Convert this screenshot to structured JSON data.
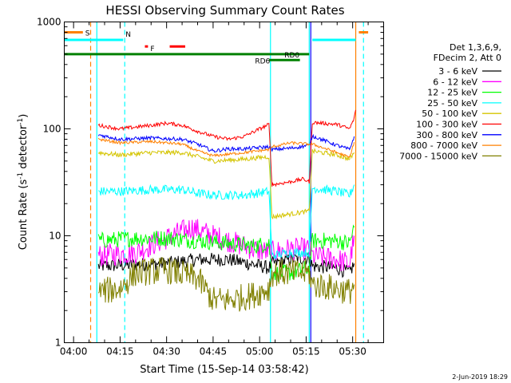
{
  "chart_data": {
    "type": "line",
    "title": "HESSI Observing Summary Count Rates",
    "xlabel": "Start Time (15-Sep-14 03:58:42)",
    "ylabel_main": "Count Rate (s",
    "ylabel_sup1": "-1",
    "ylabel_mid": " detector",
    "ylabel_sup2": "-1",
    "ylabel_end": ")",
    "yscale": "log",
    "ylim": [
      1,
      1000
    ],
    "xlim_minutes": [
      -3,
      100
    ],
    "xticks": [
      "04:00",
      "04:15",
      "04:30",
      "04:45",
      "05:00",
      "05:15",
      "05:30"
    ],
    "xtick_minutes": [
      0,
      15,
      30,
      45,
      60,
      75,
      90
    ],
    "yticks": [
      "1",
      "10",
      "100",
      "1000"
    ],
    "ytick_values": [
      1,
      10,
      100,
      1000
    ],
    "footer_date": "2-Jun-2019 18:29",
    "legend": {
      "header": [
        "Det 1,3,6,9,",
        "FDecim 2, Att 0"
      ],
      "entries": [
        {
          "label": "3 - 6 keV",
          "color": "#000000"
        },
        {
          "label": "6 - 12 keV",
          "color": "#ff00ff"
        },
        {
          "label": "12 - 25 keV",
          "color": "#00ff00"
        },
        {
          "label": "25 - 50 keV",
          "color": "#00ffff"
        },
        {
          "label": "50 - 100 keV",
          "color": "#d4c400"
        },
        {
          "label": "100 - 300 keV",
          "color": "#ff0000"
        },
        {
          "label": "300 - 800 keV",
          "color": "#0000ff"
        },
        {
          "label": "800 - 7000 keV",
          "color": "#ff8000"
        },
        {
          "label": "7000 - 15000 keV",
          "color": "#808000"
        }
      ]
    },
    "flags": [
      {
        "label": "S",
        "color": "#ff8000",
        "x": [
          -3,
          3
        ],
        "y": 800
      },
      {
        "label": "N",
        "color": "#00ffff",
        "x": [
          -3,
          16
        ],
        "y": 680
      },
      {
        "label": "F",
        "color": "#ff0000",
        "x": [
          23,
          24
        ],
        "y": 590
      },
      {
        "label": "",
        "color": "#ff0000",
        "x": [
          31,
          36
        ],
        "y": 590
      },
      {
        "label": "RD0",
        "color": "#008000",
        "x": [
          -3,
          76
        ],
        "y": 500
      },
      {
        "label": "RD6",
        "color": "#008000",
        "x": [
          63,
          73
        ],
        "y": 440
      },
      {
        "label": "",
        "color": "#00ffff",
        "x": [
          77,
          91
        ],
        "y": 680
      },
      {
        "label": "",
        "color": "#ff8000",
        "x": [
          92,
          95
        ],
        "y": 800
      }
    ],
    "vlines": [
      {
        "x": 5.5,
        "color": "#ff8000",
        "style": "dashed"
      },
      {
        "x": 16.5,
        "color": "#00ffff",
        "style": "dashed"
      },
      {
        "x": 93.5,
        "color": "#00ffff",
        "style": "dashed"
      },
      {
        "x": 7.5,
        "color": "#00ffff",
        "style": "solid"
      },
      {
        "x": 63.5,
        "color": "#00ffff",
        "style": "solid"
      },
      {
        "x": 76,
        "color": "#00ffff",
        "style": "solid"
      },
      {
        "x": 76.5,
        "color": "#0000ff",
        "style": "solid"
      },
      {
        "x": 91,
        "color": "#ff8000",
        "style": "solid"
      }
    ],
    "series": [
      {
        "name": "3 - 6 keV",
        "color": "#000000",
        "noise": 0.15,
        "x": [
          8,
          30,
          40,
          50,
          58,
          63,
          64,
          70,
          76,
          77,
          85,
          89,
          90.5
        ],
        "y": [
          5.2,
          5.5,
          6.0,
          6.0,
          5.4,
          5.0,
          5.5,
          6.0,
          6.2,
          5.2,
          5.0,
          4.5,
          5.5
        ]
      },
      {
        "name": "6 - 12 keV",
        "color": "#ff00ff",
        "noise": 0.25,
        "x": [
          8,
          20,
          30,
          38,
          45,
          50,
          58,
          63,
          64,
          70,
          76,
          77,
          85,
          89,
          90.5
        ],
        "y": [
          6.5,
          7.0,
          9.5,
          12,
          10,
          9,
          7.5,
          7.0,
          7.0,
          7.5,
          7.5,
          6.5,
          6.0,
          5.5,
          10
        ]
      },
      {
        "name": "12 - 25 keV",
        "color": "#00ff00",
        "noise": 0.18,
        "x": [
          8,
          20,
          30,
          40,
          50,
          58,
          63,
          64,
          70,
          76,
          77,
          85,
          89,
          90.5
        ],
        "y": [
          9.0,
          9.5,
          9.5,
          9.0,
          8.5,
          8.0,
          8.5,
          4.5,
          4.5,
          5.0,
          9.0,
          9.0,
          8.5,
          12
        ]
      },
      {
        "name": "25 - 50 keV",
        "color": "#00ffff",
        "noise": 0.1,
        "x": [
          8,
          15,
          25,
          35,
          40,
          45,
          55,
          63,
          64,
          70,
          76,
          77,
          85,
          89,
          90.5
        ],
        "y": [
          26,
          26,
          27,
          27,
          25,
          24,
          24,
          26,
          6.5,
          7,
          7,
          28,
          26,
          24,
          30
        ]
      },
      {
        "name": "50 - 100 keV",
        "color": "#d4c400",
        "noise": 0.05,
        "x": [
          8,
          15,
          25,
          35,
          40,
          45,
          55,
          63,
          64,
          70,
          76,
          77,
          85,
          89,
          90.5
        ],
        "y": [
          60,
          57,
          60,
          60,
          55,
          50,
          52,
          55,
          15,
          16,
          17,
          62,
          57,
          52,
          60
        ]
      },
      {
        "name": "100 - 300 keV",
        "color": "#ff0000",
        "noise": 0.04,
        "x": [
          8,
          15,
          25,
          30,
          35,
          40,
          45,
          50,
          55,
          60,
          63,
          64,
          70,
          74,
          76,
          77,
          85,
          89,
          90.5,
          91
        ],
        "y": [
          108,
          100,
          108,
          113,
          108,
          95,
          85,
          80,
          85,
          100,
          110,
          30,
          32,
          34,
          32,
          115,
          110,
          100,
          125,
          150
        ]
      },
      {
        "name": "300 - 800 keV",
        "color": "#0000ff",
        "noise": 0.04,
        "x": [
          8,
          15,
          25,
          35,
          40,
          45,
          50,
          55,
          63,
          64,
          70,
          76,
          77,
          85,
          89,
          90.5
        ],
        "y": [
          88,
          80,
          82,
          80,
          72,
          62,
          65,
          65,
          68,
          64,
          66,
          70,
          86,
          70,
          64,
          85
        ]
      },
      {
        "name": "800 - 7000 keV",
        "color": "#ff8000",
        "noise": 0.03,
        "x": [
          8,
          15,
          25,
          35,
          40,
          45,
          50,
          55,
          63,
          64,
          70,
          76,
          77,
          85,
          89,
          90.5
        ],
        "y": [
          80,
          74,
          76,
          72,
          62,
          56,
          58,
          60,
          64,
          68,
          74,
          72,
          72,
          60,
          54,
          75
        ]
      },
      {
        "name": "7000 - 15000 keV",
        "color": "#808000",
        "noise": 0.3,
        "x": [
          8,
          15,
          20,
          30,
          40,
          45,
          50,
          58,
          63,
          64,
          70,
          76,
          77,
          85,
          89,
          90.5
        ],
        "y": [
          3.0,
          3.2,
          4.5,
          4.8,
          4.0,
          2.5,
          2.5,
          2.8,
          3.2,
          4.5,
          4.5,
          4.5,
          3.5,
          3.2,
          3.0,
          3.5
        ]
      }
    ]
  }
}
